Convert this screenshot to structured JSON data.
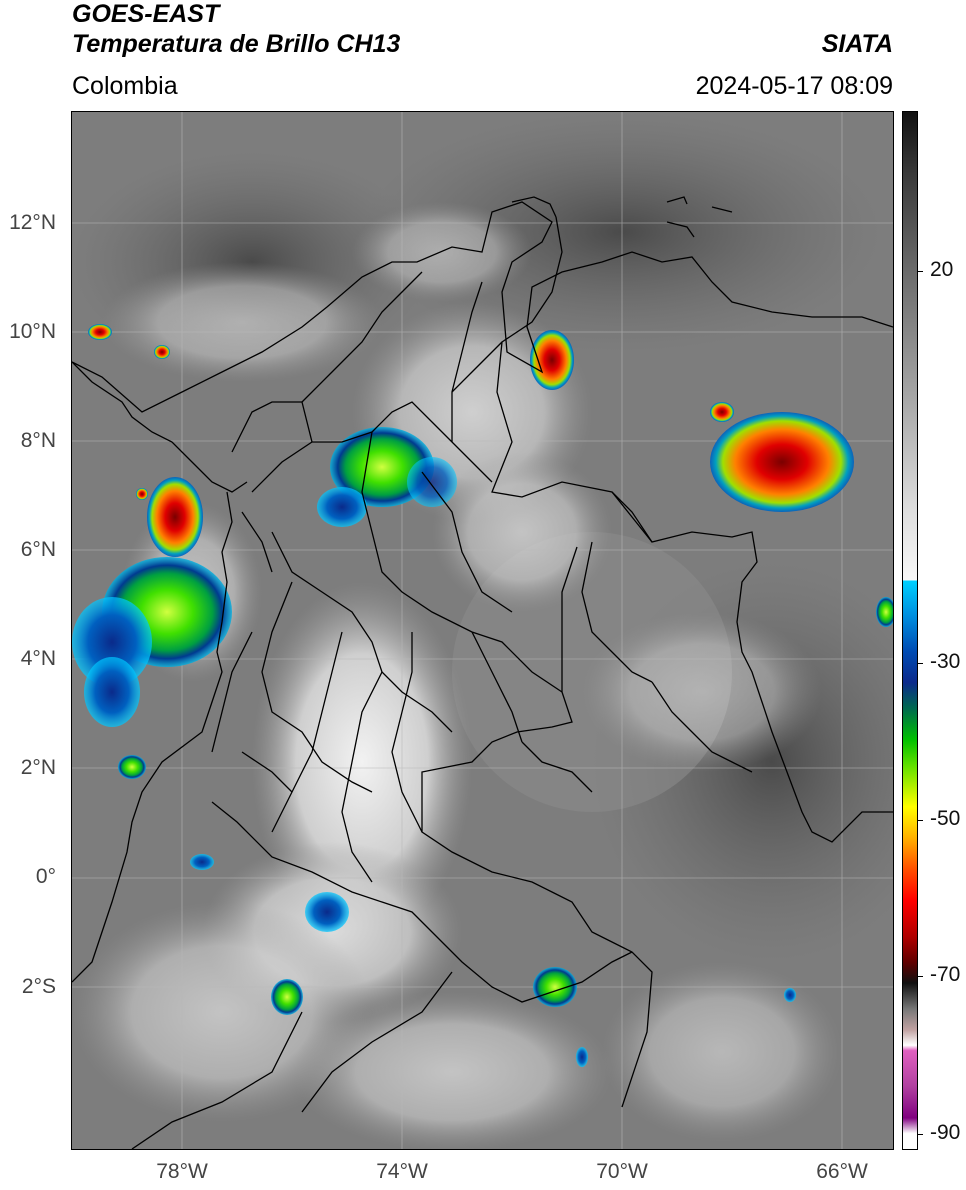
{
  "header": {
    "satellite": "GOES-EAST",
    "product": "Temperatura de Brillo CH13",
    "region": "Colombia",
    "source": "SIATA",
    "datetime": "2024-05-17 08:09"
  },
  "map": {
    "lat_labels": [
      "12°N",
      "10°N",
      "8°N",
      "6°N",
      "4°N",
      "2°N",
      "0°",
      "2°S"
    ],
    "lon_labels": [
      "78°W",
      "74°W",
      "70°W",
      "66°W"
    ]
  },
  "colorbar": {
    "ticks": [
      "20",
      "-30",
      "-50",
      "-70",
      "-90"
    ]
  }
}
